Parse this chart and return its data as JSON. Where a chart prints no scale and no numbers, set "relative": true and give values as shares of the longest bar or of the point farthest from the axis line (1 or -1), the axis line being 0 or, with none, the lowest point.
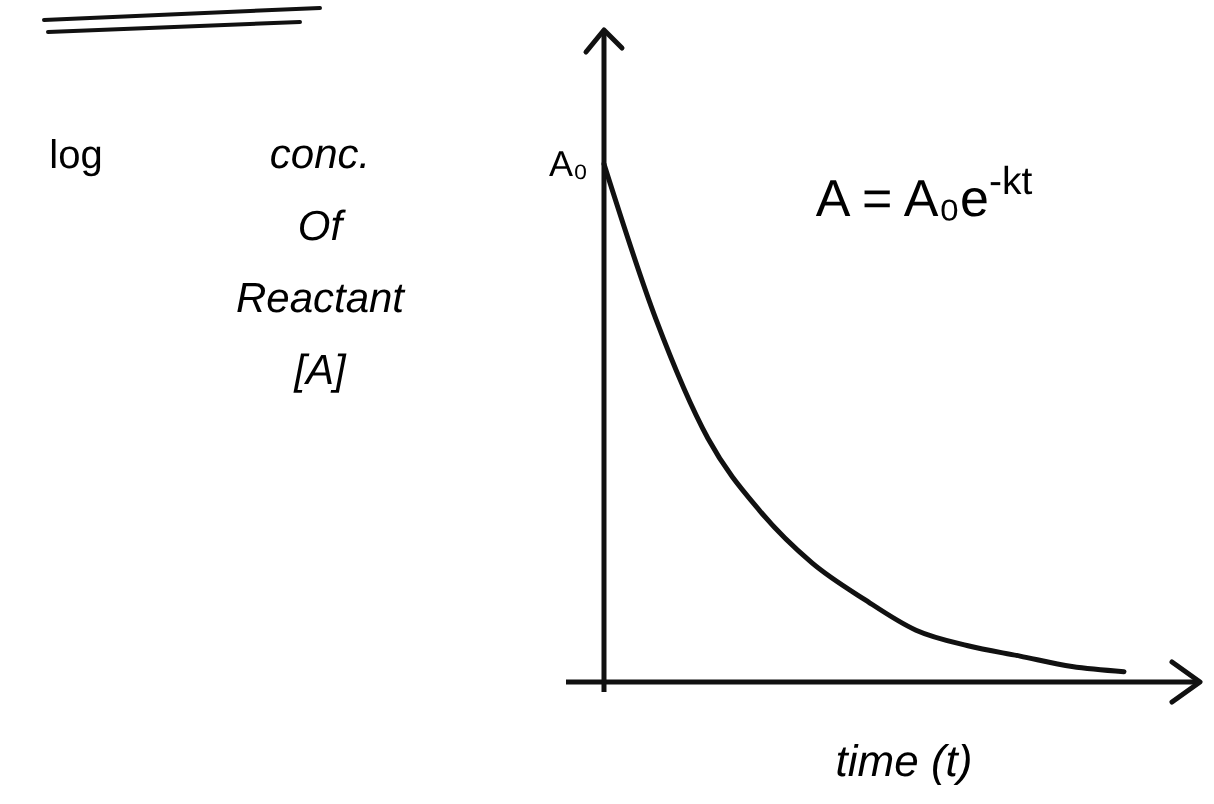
{
  "chart_data": {
    "type": "line",
    "relative": true,
    "categories": [
      null,
      null,
      null,
      null,
      null,
      null,
      null,
      null,
      null,
      null,
      null
    ],
    "series": [
      {
        "color": "#111111",
        "values": [
          1,
          0.7,
          0.47,
          0.33,
          0.23,
          0.16,
          0.1,
          0.07,
          0.05,
          0.03,
          0.02
        ]
      }
    ],
    "xlabel": "time (t)",
    "ylabel": "conc. Of Reactant [A]",
    "annotations": [
      "A₀",
      "A = A₀e$^{-kt}$",
      "log"
    ]
  }
}
